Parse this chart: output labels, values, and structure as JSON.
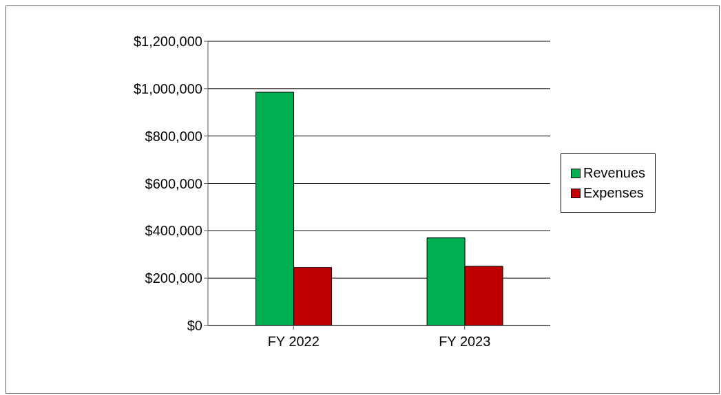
{
  "chart_data": {
    "type": "bar",
    "categories": [
      "FY 2022",
      "FY 2023"
    ],
    "series": [
      {
        "name": "Revenues",
        "color": "#00b050",
        "values": [
          985000,
          370000
        ]
      },
      {
        "name": "Expenses",
        "color": "#c00000",
        "values": [
          245000,
          250000
        ]
      }
    ],
    "ylim": [
      0,
      1200000
    ],
    "yticks": [
      {
        "value": 0,
        "label": "$0"
      },
      {
        "value": 200000,
        "label": "$200,000"
      },
      {
        "value": 400000,
        "label": "$400,000"
      },
      {
        "value": 600000,
        "label": "$600,000"
      },
      {
        "value": 800000,
        "label": "$800,000"
      },
      {
        "value": 1000000,
        "label": "$1,000,000"
      },
      {
        "value": 1200000,
        "label": "$1,200,000"
      }
    ],
    "grid": "y",
    "legend": "right"
  }
}
